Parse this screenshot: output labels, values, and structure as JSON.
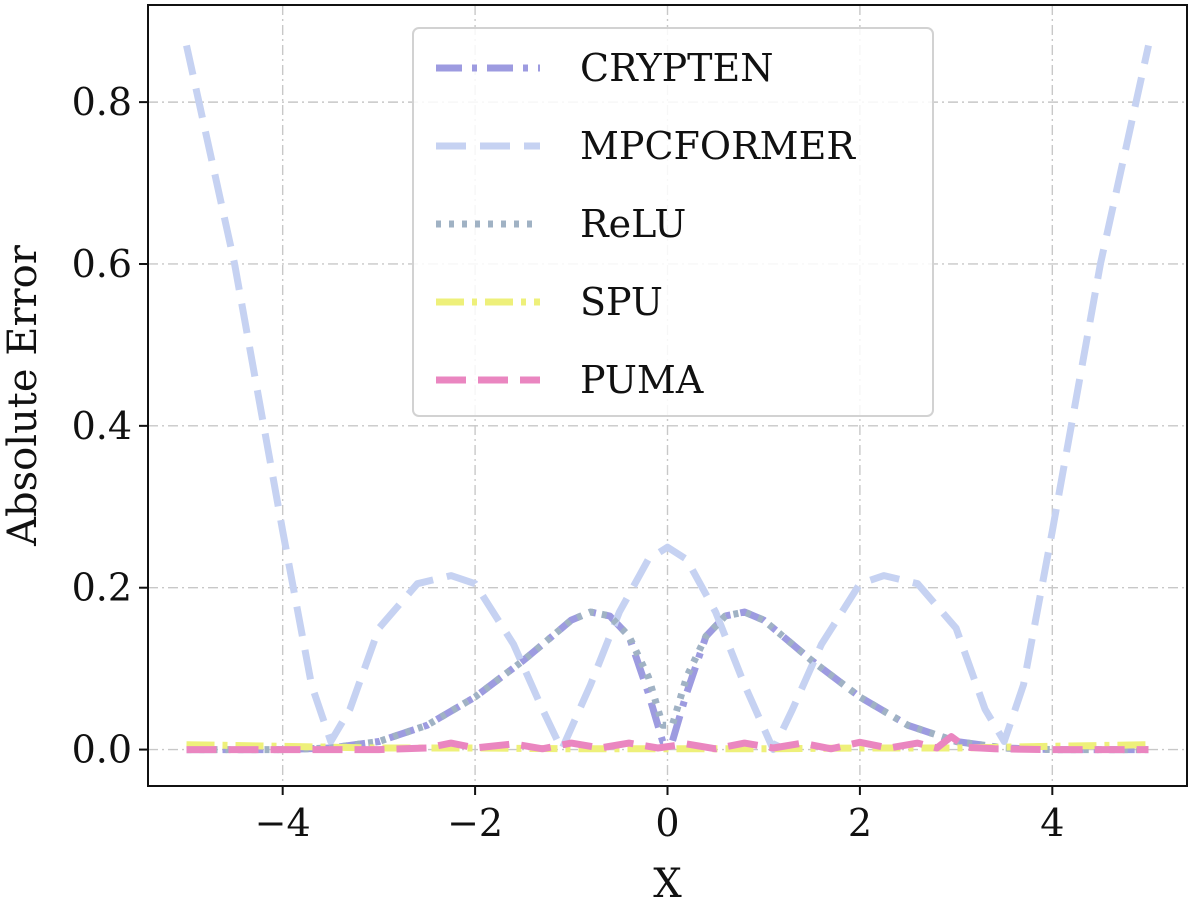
{
  "chart_data": {
    "type": "line",
    "xlabel": "X",
    "ylabel": "Absolute Error",
    "xlim": [
      -5.4,
      5.4
    ],
    "ylim": [
      -0.045,
      0.92
    ],
    "xticks": [
      -4,
      -2,
      0,
      2,
      4
    ],
    "xtick_labels": [
      "−4",
      "−2",
      "0",
      "2",
      "4"
    ],
    "yticks": [
      0.0,
      0.2,
      0.4,
      0.6,
      0.8
    ],
    "ytick_labels": [
      "0.0",
      "0.2",
      "0.4",
      "0.6",
      "0.8"
    ],
    "grid": true,
    "legend_position": "upper-center",
    "series": [
      {
        "name": "CRYPTEN",
        "color": "#9d9be0",
        "dash": "26 10 5 10",
        "x": [
          -5,
          -4,
          -3.5,
          -3,
          -2.5,
          -2,
          -1.5,
          -1.2,
          -1.0,
          -0.8,
          -0.6,
          -0.4,
          -0.2,
          -0.05,
          0.05,
          0.2,
          0.4,
          0.6,
          0.8,
          1.0,
          1.2,
          1.5,
          2,
          2.5,
          3,
          3.5,
          4,
          5
        ],
        "y": [
          0.0,
          0.0,
          0.002,
          0.01,
          0.03,
          0.065,
          0.11,
          0.14,
          0.16,
          0.17,
          0.165,
          0.14,
          0.07,
          0.01,
          0.01,
          0.07,
          0.14,
          0.165,
          0.17,
          0.16,
          0.14,
          0.11,
          0.065,
          0.03,
          0.01,
          0.002,
          0.0,
          0.0
        ]
      },
      {
        "name": "MPCFORMER",
        "color": "#c6d2f2",
        "dash": "30 14",
        "x": [
          -5,
          -4.5,
          -4,
          -3.7,
          -3.5,
          -3.3,
          -3,
          -2.6,
          -2.25,
          -2,
          -1.6,
          -1.3,
          -1.1,
          -0.8,
          -0.5,
          -0.2,
          0,
          0.2,
          0.5,
          0.8,
          1.1,
          1.3,
          1.6,
          2,
          2.25,
          2.6,
          3,
          3.3,
          3.5,
          3.7,
          4,
          4.5,
          5
        ],
        "y": [
          0.87,
          0.6,
          0.27,
          0.08,
          0.01,
          0.05,
          0.15,
          0.205,
          0.215,
          0.205,
          0.13,
          0.05,
          0.0,
          0.08,
          0.17,
          0.235,
          0.25,
          0.235,
          0.17,
          0.08,
          0.0,
          0.05,
          0.13,
          0.205,
          0.215,
          0.205,
          0.15,
          0.05,
          0.01,
          0.08,
          0.27,
          0.6,
          0.87
        ]
      },
      {
        "name": "ReLU",
        "color": "#a0b2c4",
        "dash": "5 8",
        "x": [
          -5,
          -4,
          -3.5,
          -3,
          -2.5,
          -2,
          -1.5,
          -1.2,
          -1.0,
          -0.8,
          -0.6,
          -0.4,
          -0.2,
          -0.05,
          0.05,
          0.2,
          0.4,
          0.6,
          0.8,
          1.0,
          1.2,
          1.5,
          2,
          2.5,
          3,
          3.5,
          4,
          5
        ],
        "y": [
          0.0,
          0.0,
          0.002,
          0.01,
          0.03,
          0.065,
          0.11,
          0.14,
          0.16,
          0.17,
          0.165,
          0.14,
          0.09,
          0.03,
          0.03,
          0.09,
          0.14,
          0.165,
          0.17,
          0.16,
          0.14,
          0.11,
          0.065,
          0.03,
          0.01,
          0.002,
          0.0,
          0.0
        ]
      },
      {
        "name": "SPU",
        "color": "#eef07a",
        "dash": "28 8 5 8",
        "x": [
          -5,
          -4,
          -3,
          -2,
          -1,
          0,
          1,
          2,
          3,
          4,
          5
        ],
        "y": [
          0.006,
          0.004,
          0.002,
          0.002,
          0.001,
          0.001,
          0.001,
          0.002,
          0.002,
          0.004,
          0.006
        ]
      },
      {
        "name": "PUMA",
        "color": "#ea86c0",
        "dash": "30 12",
        "x": [
          -5,
          -3,
          -2.5,
          -2.25,
          -2,
          -1.6,
          -1.3,
          -1.0,
          -0.7,
          -0.4,
          -0.1,
          0.2,
          0.5,
          0.8,
          1.1,
          1.4,
          1.7,
          2.0,
          2.3,
          2.6,
          2.8,
          2.95,
          3.1,
          3.4,
          4,
          5
        ],
        "y": [
          0.0,
          0.0,
          0.002,
          0.008,
          0.002,
          0.007,
          0.001,
          0.008,
          0.002,
          0.008,
          0.002,
          0.007,
          0.001,
          0.008,
          0.002,
          0.008,
          0.001,
          0.009,
          0.002,
          0.008,
          0.002,
          0.016,
          0.003,
          0.001,
          0.0,
          0.0
        ]
      }
    ]
  }
}
